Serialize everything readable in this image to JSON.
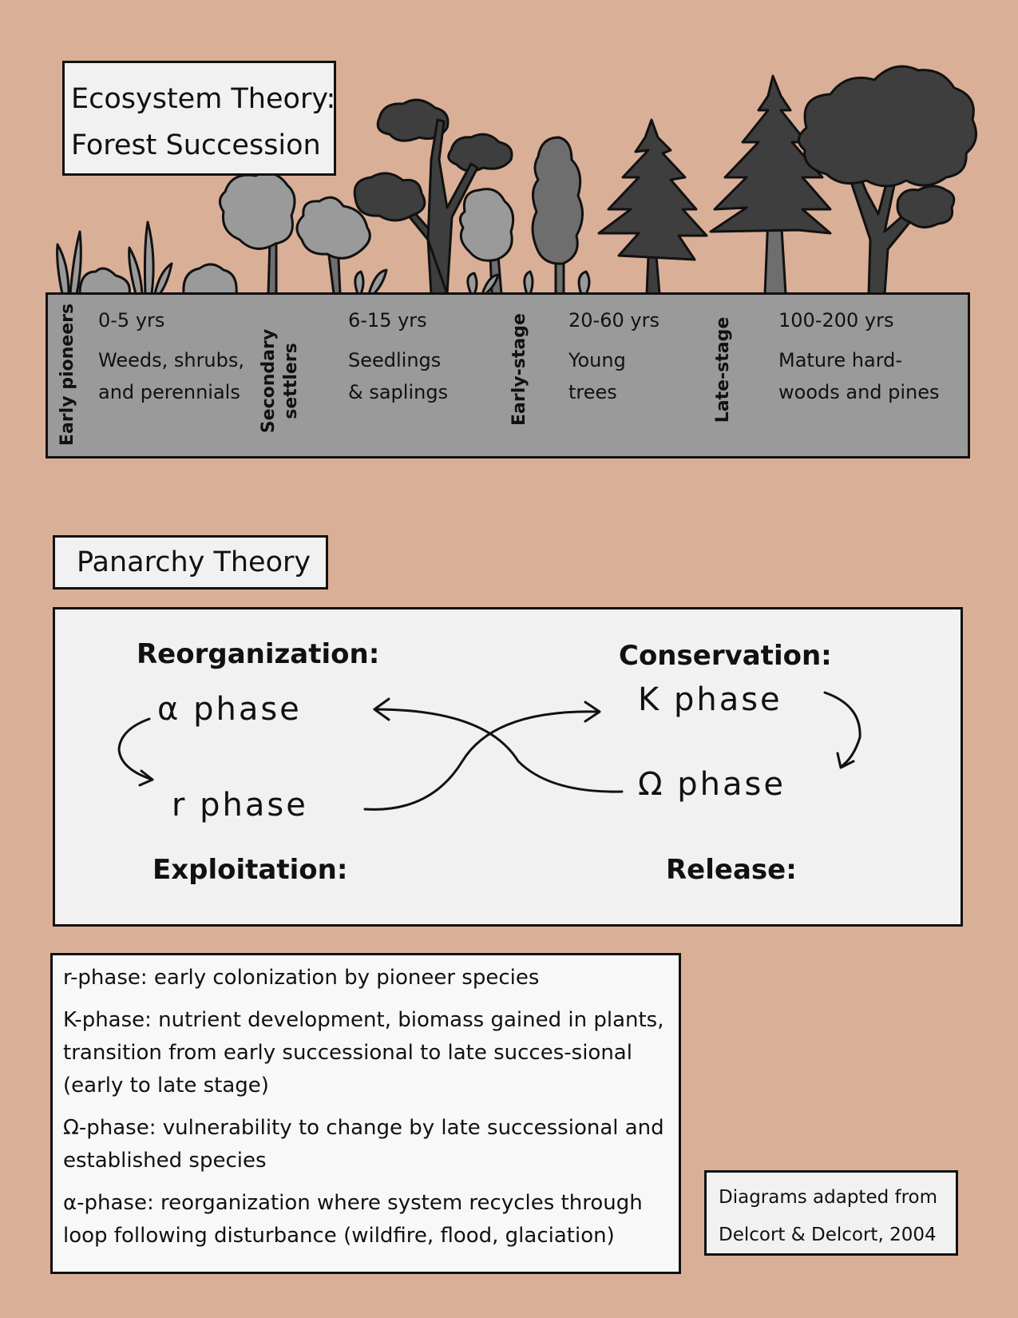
{
  "title": {
    "line1": "Ecosystem Theory:",
    "line2": "Forest Succession"
  },
  "succession": [
    {
      "stage": "Early pioneers",
      "years": "0-5 yrs",
      "desc1": "Weeds, shrubs,",
      "desc2": "and perennials"
    },
    {
      "stage1": "Secondary",
      "stage2": "settlers",
      "years": "6-15 yrs",
      "desc1": "Seedlings",
      "desc2": "& saplings"
    },
    {
      "stage": "Early-stage",
      "years": "20-60 yrs",
      "desc1": "Young",
      "desc2": "trees"
    },
    {
      "stage": "Late-stage",
      "years": "100-200 yrs",
      "desc1": "Mature hard-",
      "desc2": "woods and pines"
    }
  ],
  "panarchy": {
    "title": "Panarchy Theory",
    "reorganization": "Reorganization:",
    "conservation": "Conservation:",
    "exploitation": "Exploitation:",
    "release": "Release:",
    "alpha_phase": "α phase",
    "k_phase": "K phase",
    "r_phase": "r phase",
    "omega_phase": "Ω phase"
  },
  "definitions": [
    "r-phase:  early colonization by pioneer species",
    "K-phase: nutrient development, biomass gained in plants, transition from early successional to late succes-sional (early to late stage)",
    "Ω-phase: vulnerability to change by late successional and established species",
    "α-phase:  reorganization where system recycles through loop following disturbance (wildfire, flood, glaciation)"
  ],
  "credit": {
    "line1": "Diagrams adapted from",
    "line2": "Delcort & Delcort, 2004"
  },
  "colors": {
    "background": "#d9b097",
    "ground": "#9a9a9a",
    "box": "#f1f1f1",
    "light_plant": "#9a9a9a",
    "mid_plant": "#6e6e6e",
    "dark_plant": "#3e3e3e"
  }
}
